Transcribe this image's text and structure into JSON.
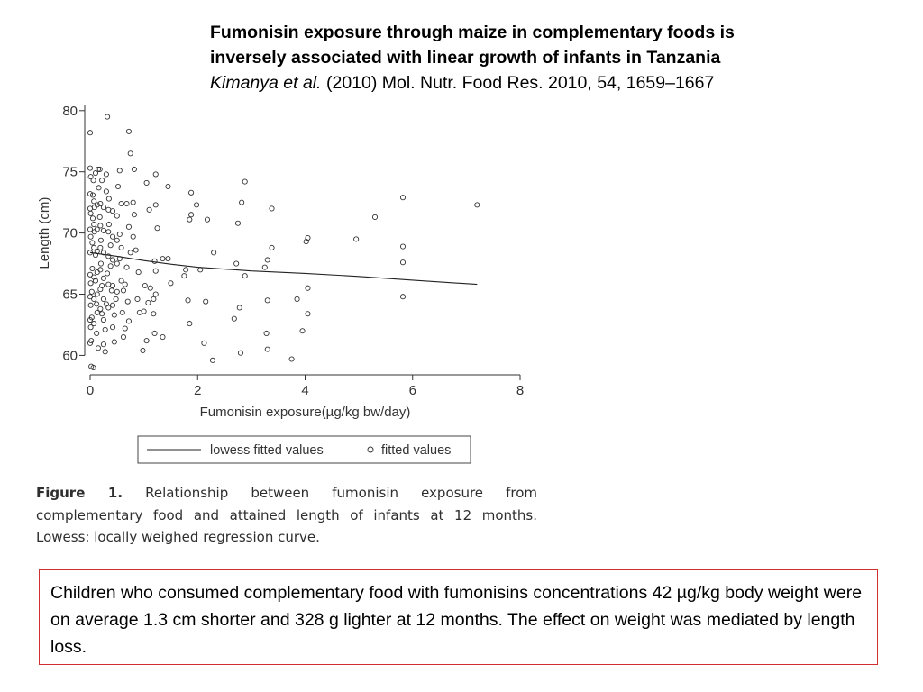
{
  "header": {
    "title_line1": "Fumonisin exposure through maize in complementary foods is",
    "title_line2": "inversely associated with linear growth of infants in Tanzania",
    "citation_authors": "Kimanya et al.",
    "citation_rest": " (2010) Mol. Nutr. Food Res. 2010, 54, 1659–1667"
  },
  "figure": {
    "caption_label": "Figure 1.",
    "caption_text": " Relationship between fumonisin exposure from complementary food and attained length of infants at 12 months. Lowess: locally weighed regression curve."
  },
  "summary": {
    "text": "Children who consumed complementary food with fumonisins concentrations 42 µg/kg body weight were on average 1.3 cm shorter and 328 g lighter at 12 months. The effect on weight was mediated by length loss."
  },
  "colors": {
    "summary_border": "#d03030",
    "marker": "#333333",
    "line": "#222222"
  },
  "chart_data": {
    "type": "scatter",
    "xlabel": "Fumonisin exposure(µg/kg bw/day)",
    "ylabel": "Length (cm)",
    "xlim": [
      0,
      8
    ],
    "ylim": [
      59,
      80.5
    ],
    "x_ticks": [
      0,
      2,
      4,
      6,
      8
    ],
    "y_ticks": [
      60,
      65,
      70,
      75,
      80
    ],
    "grid": false,
    "legend_position": "bottom",
    "lowess": {
      "name": "lowess fitted values",
      "x": [
        0,
        0.5,
        1,
        1.5,
        2,
        3,
        4,
        5,
        6,
        7.2
      ],
      "y": [
        68.4,
        68.1,
        67.75,
        67.45,
        67.2,
        66.9,
        66.7,
        66.45,
        66.15,
        65.8
      ]
    },
    "scatter": {
      "name": "fitted values",
      "points": [
        [
          0,
          78.2
        ],
        [
          0.32,
          79.5
        ],
        [
          0.72,
          78.3
        ],
        [
          0.75,
          76.5
        ],
        [
          0.55,
          75.1
        ],
        [
          0.82,
          75.2
        ],
        [
          1.22,
          74.8
        ],
        [
          1.45,
          73.8
        ],
        [
          1.88,
          73.3
        ],
        [
          2.88,
          74.2
        ],
        [
          2.82,
          72.5
        ],
        [
          3.38,
          72
        ],
        [
          5.82,
          72.9
        ],
        [
          7.2,
          72.3
        ],
        [
          5.3,
          71.3
        ],
        [
          4.05,
          69.6
        ],
        [
          4.02,
          69.3
        ],
        [
          4.95,
          69.5
        ],
        [
          5.82,
          68.9
        ],
        [
          5.82,
          67.6
        ],
        [
          5.82,
          64.8
        ],
        [
          4.05,
          65.5
        ],
        [
          4.05,
          63.4
        ],
        [
          3.95,
          62
        ],
        [
          3.85,
          64.6
        ],
        [
          3.3,
          64.5
        ],
        [
          3.28,
          61.8
        ],
        [
          3.3,
          60.5
        ],
        [
          3.75,
          59.7
        ],
        [
          3.3,
          67.8
        ],
        [
          3.25,
          67.2
        ],
        [
          3.38,
          68.8
        ],
        [
          2.88,
          66.5
        ],
        [
          2.72,
          67.5
        ],
        [
          2.75,
          70.8
        ],
        [
          2.78,
          63.9
        ],
        [
          2.8,
          60.2
        ],
        [
          2.68,
          63
        ],
        [
          2.3,
          68.4
        ],
        [
          2.28,
          59.6
        ],
        [
          2.12,
          61
        ],
        [
          2.15,
          64.4
        ],
        [
          2.05,
          67
        ],
        [
          2.18,
          71.1
        ],
        [
          1.82,
          64.5
        ],
        [
          1.85,
          62.6
        ],
        [
          1.78,
          67
        ],
        [
          1.85,
          71.1
        ],
        [
          1.88,
          71.5
        ],
        [
          1.75,
          66.5
        ],
        [
          1.98,
          72.3
        ],
        [
          1.5,
          65.9
        ],
        [
          1.45,
          67.9
        ],
        [
          1.35,
          67.9
        ],
        [
          1.2,
          67.7
        ],
        [
          1.22,
          66.9
        ],
        [
          1.22,
          65
        ],
        [
          1.18,
          64.6
        ],
        [
          1.18,
          63.4
        ],
        [
          1.2,
          61.8
        ],
        [
          1.35,
          61.5
        ],
        [
          1.25,
          70.4
        ],
        [
          1.22,
          72.3
        ],
        [
          1.05,
          74.1
        ],
        [
          1.1,
          71.9
        ],
        [
          1.02,
          65.7
        ],
        [
          1.12,
          65.5
        ],
        [
          1.08,
          64.3
        ],
        [
          1.0,
          63.6
        ],
        [
          1.05,
          61.2
        ],
        [
          0.98,
          60.4
        ],
        [
          0.92,
          63.5
        ],
        [
          0.88,
          64.6
        ],
        [
          0.9,
          66.8
        ],
        [
          0.85,
          68.6
        ],
        [
          0.8,
          69.7
        ],
        [
          0.82,
          71.5
        ],
        [
          0.8,
          72.5
        ],
        [
          0.72,
          70.5
        ],
        [
          0.68,
          67.2
        ],
        [
          0.65,
          65.8
        ],
        [
          0.7,
          64.4
        ],
        [
          0.72,
          62.8
        ],
        [
          0.65,
          62.2
        ],
        [
          0.62,
          61.5
        ],
        [
          0.6,
          63.5
        ],
        [
          0.58,
          66.1
        ],
        [
          0.55,
          67.9
        ],
        [
          0.55,
          69.9
        ],
        [
          0.52,
          73.8
        ],
        [
          0.5,
          71.4
        ],
        [
          0.48,
          64.6
        ],
        [
          0.45,
          63.3
        ],
        [
          0.45,
          61.1
        ],
        [
          0.42,
          62.3
        ],
        [
          0.4,
          65.3
        ],
        [
          0.38,
          67.3
        ],
        [
          0.38,
          69
        ],
        [
          0.35,
          70.7
        ],
        [
          0.35,
          72.8
        ],
        [
          0.3,
          73.4
        ],
        [
          0.32,
          66.7
        ],
        [
          0.3,
          64.2
        ],
        [
          0.28,
          62.1
        ],
        [
          0.28,
          60.3
        ],
        [
          0.25,
          60.9
        ],
        [
          0.22,
          63.4
        ],
        [
          0.22,
          65.7
        ],
        [
          0.2,
          67.5
        ],
        [
          0.2,
          69.4
        ],
        [
          0.18,
          71.3
        ],
        [
          0.16,
          73.7
        ],
        [
          0.15,
          75.2
        ],
        [
          0.15,
          60.6
        ],
        [
          0.12,
          61.8
        ],
        [
          0.12,
          64.2
        ],
        [
          0.1,
          66.1
        ],
        [
          0.1,
          68.2
        ],
        [
          0.08,
          70.1
        ],
        [
          0.08,
          72.1
        ],
        [
          0.06,
          74.3
        ],
        [
          0.05,
          73.1
        ],
        [
          0.05,
          71.2
        ],
        [
          0.04,
          69.2
        ],
        [
          0.04,
          67.1
        ],
        [
          0.03,
          65.2
        ],
        [
          0.03,
          63.1
        ],
        [
          0.02,
          61.2
        ],
        [
          0.02,
          59.1
        ],
        [
          0.0,
          75.3
        ],
        [
          0.0,
          73.2
        ],
        [
          0.0,
          72
        ],
        [
          0.0,
          70.3
        ],
        [
          0.0,
          68.4
        ],
        [
          0.0,
          66.6
        ],
        [
          0.0,
          64.8
        ],
        [
          0.0,
          62.9
        ],
        [
          0.0,
          61
        ],
        [
          0.06,
          59.0
        ],
        [
          0.01,
          74.6
        ],
        [
          0.01,
          71.6
        ],
        [
          0.01,
          69.7
        ],
        [
          0.01,
          65.9
        ],
        [
          0.01,
          64.1
        ],
        [
          0.01,
          62.3
        ],
        [
          0.07,
          62.6
        ],
        [
          0.07,
          64.6
        ],
        [
          0.07,
          66.4
        ],
        [
          0.07,
          68.8
        ],
        [
          0.07,
          70.7
        ],
        [
          0.07,
          72.6
        ],
        [
          0.13,
          72.3
        ],
        [
          0.13,
          70.3
        ],
        [
          0.13,
          68.5
        ],
        [
          0.13,
          66.8
        ],
        [
          0.13,
          65
        ],
        [
          0.13,
          63.5
        ],
        [
          0.19,
          63.8
        ],
        [
          0.19,
          65.4
        ],
        [
          0.19,
          67
        ],
        [
          0.19,
          68.8
        ],
        [
          0.19,
          70.6
        ],
        [
          0.19,
          72.4
        ],
        [
          0.25,
          72.1
        ],
        [
          0.25,
          70.2
        ],
        [
          0.25,
          68.4
        ],
        [
          0.25,
          66.3
        ],
        [
          0.25,
          64.6
        ],
        [
          0.25,
          62.9
        ],
        [
          0.34,
          63.9
        ],
        [
          0.34,
          65.8
        ],
        [
          0.34,
          68.1
        ],
        [
          0.34,
          70.1
        ],
        [
          0.34,
          71.9
        ],
        [
          0.42,
          71.8
        ],
        [
          0.42,
          69.7
        ],
        [
          0.42,
          67.8
        ],
        [
          0.42,
          65.7
        ],
        [
          0.42,
          64.1
        ],
        [
          0.5,
          65.2
        ],
        [
          0.5,
          67.5
        ],
        [
          0.5,
          69.4
        ],
        [
          0.58,
          68.8
        ],
        [
          0.58,
          72.4
        ],
        [
          0.62,
          65.3
        ],
        [
          0.68,
          72.4
        ],
        [
          0.75,
          68.4
        ],
        [
          0.22,
          74.3
        ],
        [
          0.3,
          74.8
        ],
        [
          0.18,
          75.2
        ],
        [
          0.1,
          74.9
        ]
      ]
    }
  }
}
